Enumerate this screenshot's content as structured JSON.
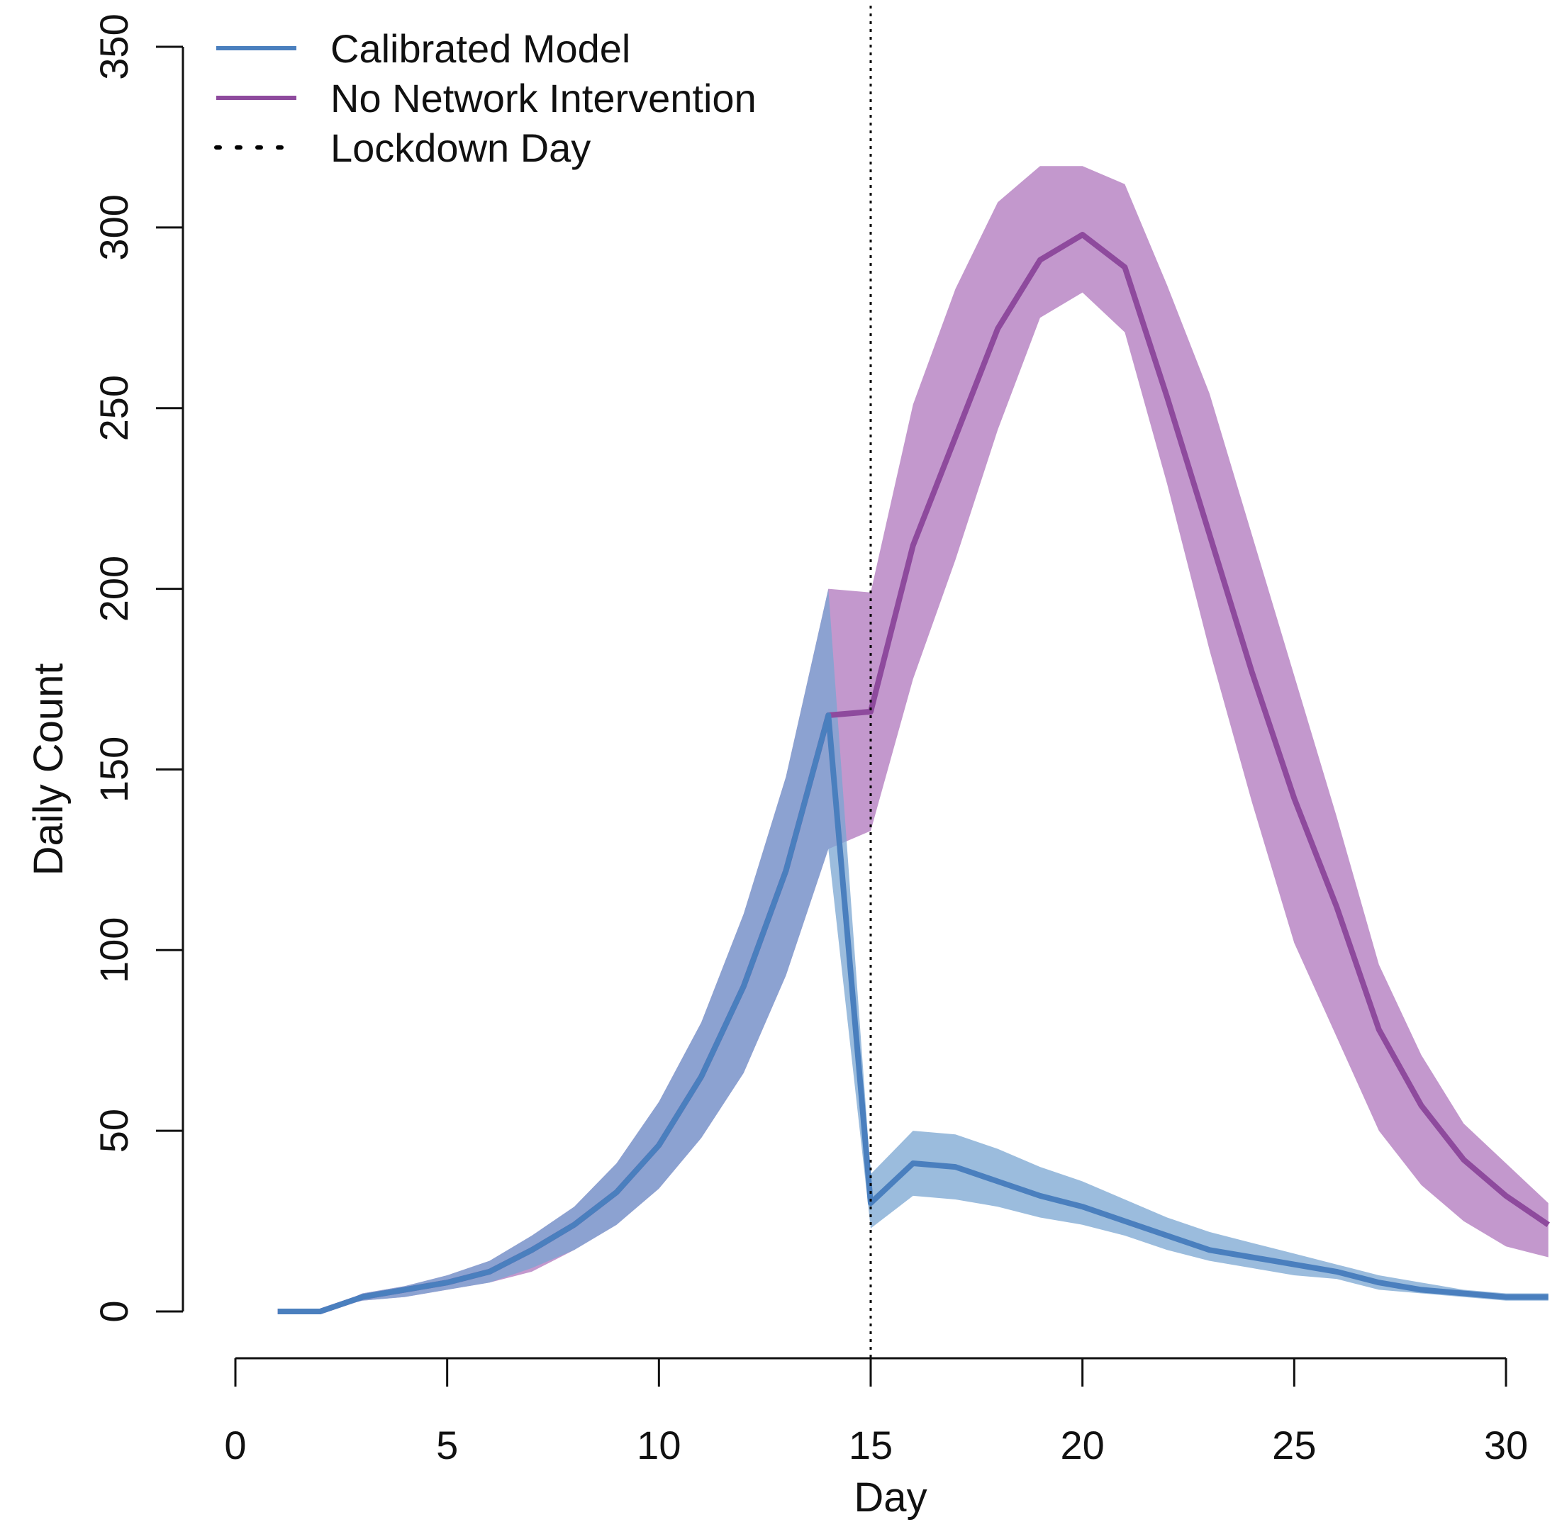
{
  "chart_data": {
    "type": "line",
    "xlabel": "Day",
    "ylabel": "Daily Count",
    "xlim": [
      0,
      31
    ],
    "ylim": [
      0,
      350
    ],
    "xticks": [
      0,
      5,
      10,
      15,
      20,
      25,
      30
    ],
    "yticks": [
      0,
      50,
      100,
      150,
      200,
      250,
      300,
      350
    ],
    "grid": false,
    "legend_position": "top-left",
    "legend": [
      {
        "label": "Calibrated Model",
        "style": "solid",
        "color": "#4a7fbe"
      },
      {
        "label": "No Network Intervention",
        "style": "solid",
        "color": "#8e4a9d"
      },
      {
        "label": "Lockdown Day",
        "style": "dotted",
        "color": "#000000"
      }
    ],
    "vline": {
      "x": 15,
      "label": "Lockdown Day"
    },
    "x": [
      1,
      2,
      3,
      4,
      5,
      6,
      7,
      8,
      9,
      10,
      11,
      12,
      13,
      14,
      15,
      16,
      17,
      18,
      19,
      20,
      21,
      22,
      23,
      24,
      25,
      26,
      27,
      28,
      29,
      30,
      31
    ],
    "series": [
      {
        "name": "Calibrated Model",
        "color": "#4a7fbe",
        "band_color": "#7aa6d2",
        "values": [
          0,
          0,
          4,
          6,
          8,
          11,
          17,
          24,
          33,
          46,
          65,
          90,
          122,
          165,
          30,
          41,
          40,
          36,
          32,
          29,
          25,
          21,
          17,
          15,
          13,
          11,
          8,
          6,
          5,
          4,
          4
        ],
        "lower": [
          0,
          0,
          3,
          4,
          6,
          8,
          12,
          17,
          24,
          34,
          48,
          66,
          93,
          128,
          23,
          32,
          31,
          29,
          26,
          24,
          21,
          17,
          14,
          12,
          10,
          9,
          6,
          5,
          4,
          3,
          3
        ],
        "upper": [
          0,
          0,
          5,
          7,
          10,
          14,
          21,
          29,
          41,
          58,
          80,
          110,
          148,
          200,
          38,
          50,
          49,
          45,
          40,
          36,
          31,
          26,
          22,
          19,
          16,
          13,
          10,
          8,
          6,
          5,
          5
        ]
      },
      {
        "name": "No Network Intervention",
        "color": "#8e4a9d",
        "band_color": "#b886c4",
        "values": [
          0,
          0,
          4,
          6,
          8,
          11,
          17,
          24,
          33,
          46,
          65,
          90,
          122,
          165,
          166,
          212,
          242,
          272,
          291,
          298,
          289,
          253,
          215,
          177,
          142,
          112,
          78,
          57,
          42,
          32,
          24
        ],
        "lower": [
          0,
          0,
          3,
          4,
          6,
          8,
          11,
          17,
          24,
          34,
          48,
          66,
          93,
          128,
          133,
          175,
          208,
          244,
          275,
          282,
          271,
          229,
          183,
          141,
          102,
          76,
          50,
          35,
          25,
          18,
          15
        ],
        "upper": [
          0,
          0,
          5,
          7,
          10,
          14,
          21,
          29,
          41,
          58,
          80,
          110,
          148,
          200,
          199,
          251,
          283,
          307,
          317,
          317,
          312,
          284,
          254,
          215,
          176,
          137,
          96,
          71,
          52,
          41,
          30
        ]
      }
    ]
  }
}
